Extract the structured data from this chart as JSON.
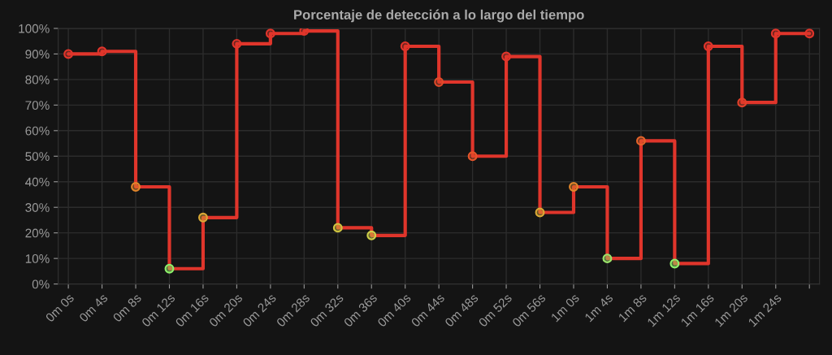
{
  "chart_data": {
    "type": "step",
    "title": "Porcentaje de detección a lo largo del tiempo",
    "categories": [
      "0m 0s",
      "0m 4s",
      "0m 8s",
      "0m 12s",
      "0m 16s",
      "0m 20s",
      "0m 24s",
      "0m 28s",
      "0m 32s",
      "0m 36s",
      "0m 40s",
      "0m 44s",
      "0m 48s",
      "0m 52s",
      "0m 56s",
      "1m 0s",
      "1m 4s",
      "1m 8s",
      "1m 12s",
      "1m 16s",
      "1m 20s",
      "1m 24s",
      null
    ],
    "values": [
      90,
      91,
      38,
      6,
      26,
      94,
      98,
      99,
      22,
      19,
      93,
      79,
      50,
      89,
      28,
      38,
      10,
      56,
      8,
      93,
      71,
      98,
      98
    ],
    "colors": [
      "#e0352b",
      "#e0352b",
      "#e0852a",
      "#8ef06a",
      "#d9a935",
      "#e0352b",
      "#e0352b",
      "#e0352b",
      "#d0c540",
      "#cfd04a",
      "#e0352b",
      "#e04a2a",
      "#e5542a",
      "#e0352b",
      "#d9a935",
      "#e0852a",
      "#9be46a",
      "#e5632a",
      "#8ef06a",
      "#e0352b",
      "#e2402a",
      "#e0352b",
      "#e0352b"
    ],
    "ylim": [
      0,
      100
    ],
    "yticks": [
      {
        "value": 0,
        "label": "0%"
      },
      {
        "value": 10,
        "label": "10%"
      },
      {
        "value": 20,
        "label": "20%"
      },
      {
        "value": 30,
        "label": "30%"
      },
      {
        "value": 40,
        "label": "40%"
      },
      {
        "value": 50,
        "label": "50%"
      },
      {
        "value": 60,
        "label": "60%"
      },
      {
        "value": 70,
        "label": "70%"
      },
      {
        "value": 80,
        "label": "80%"
      },
      {
        "value": 90,
        "label": "90%"
      },
      {
        "value": 100,
        "label": "100%"
      }
    ],
    "grid": true,
    "marker": "circle",
    "legend": false
  }
}
